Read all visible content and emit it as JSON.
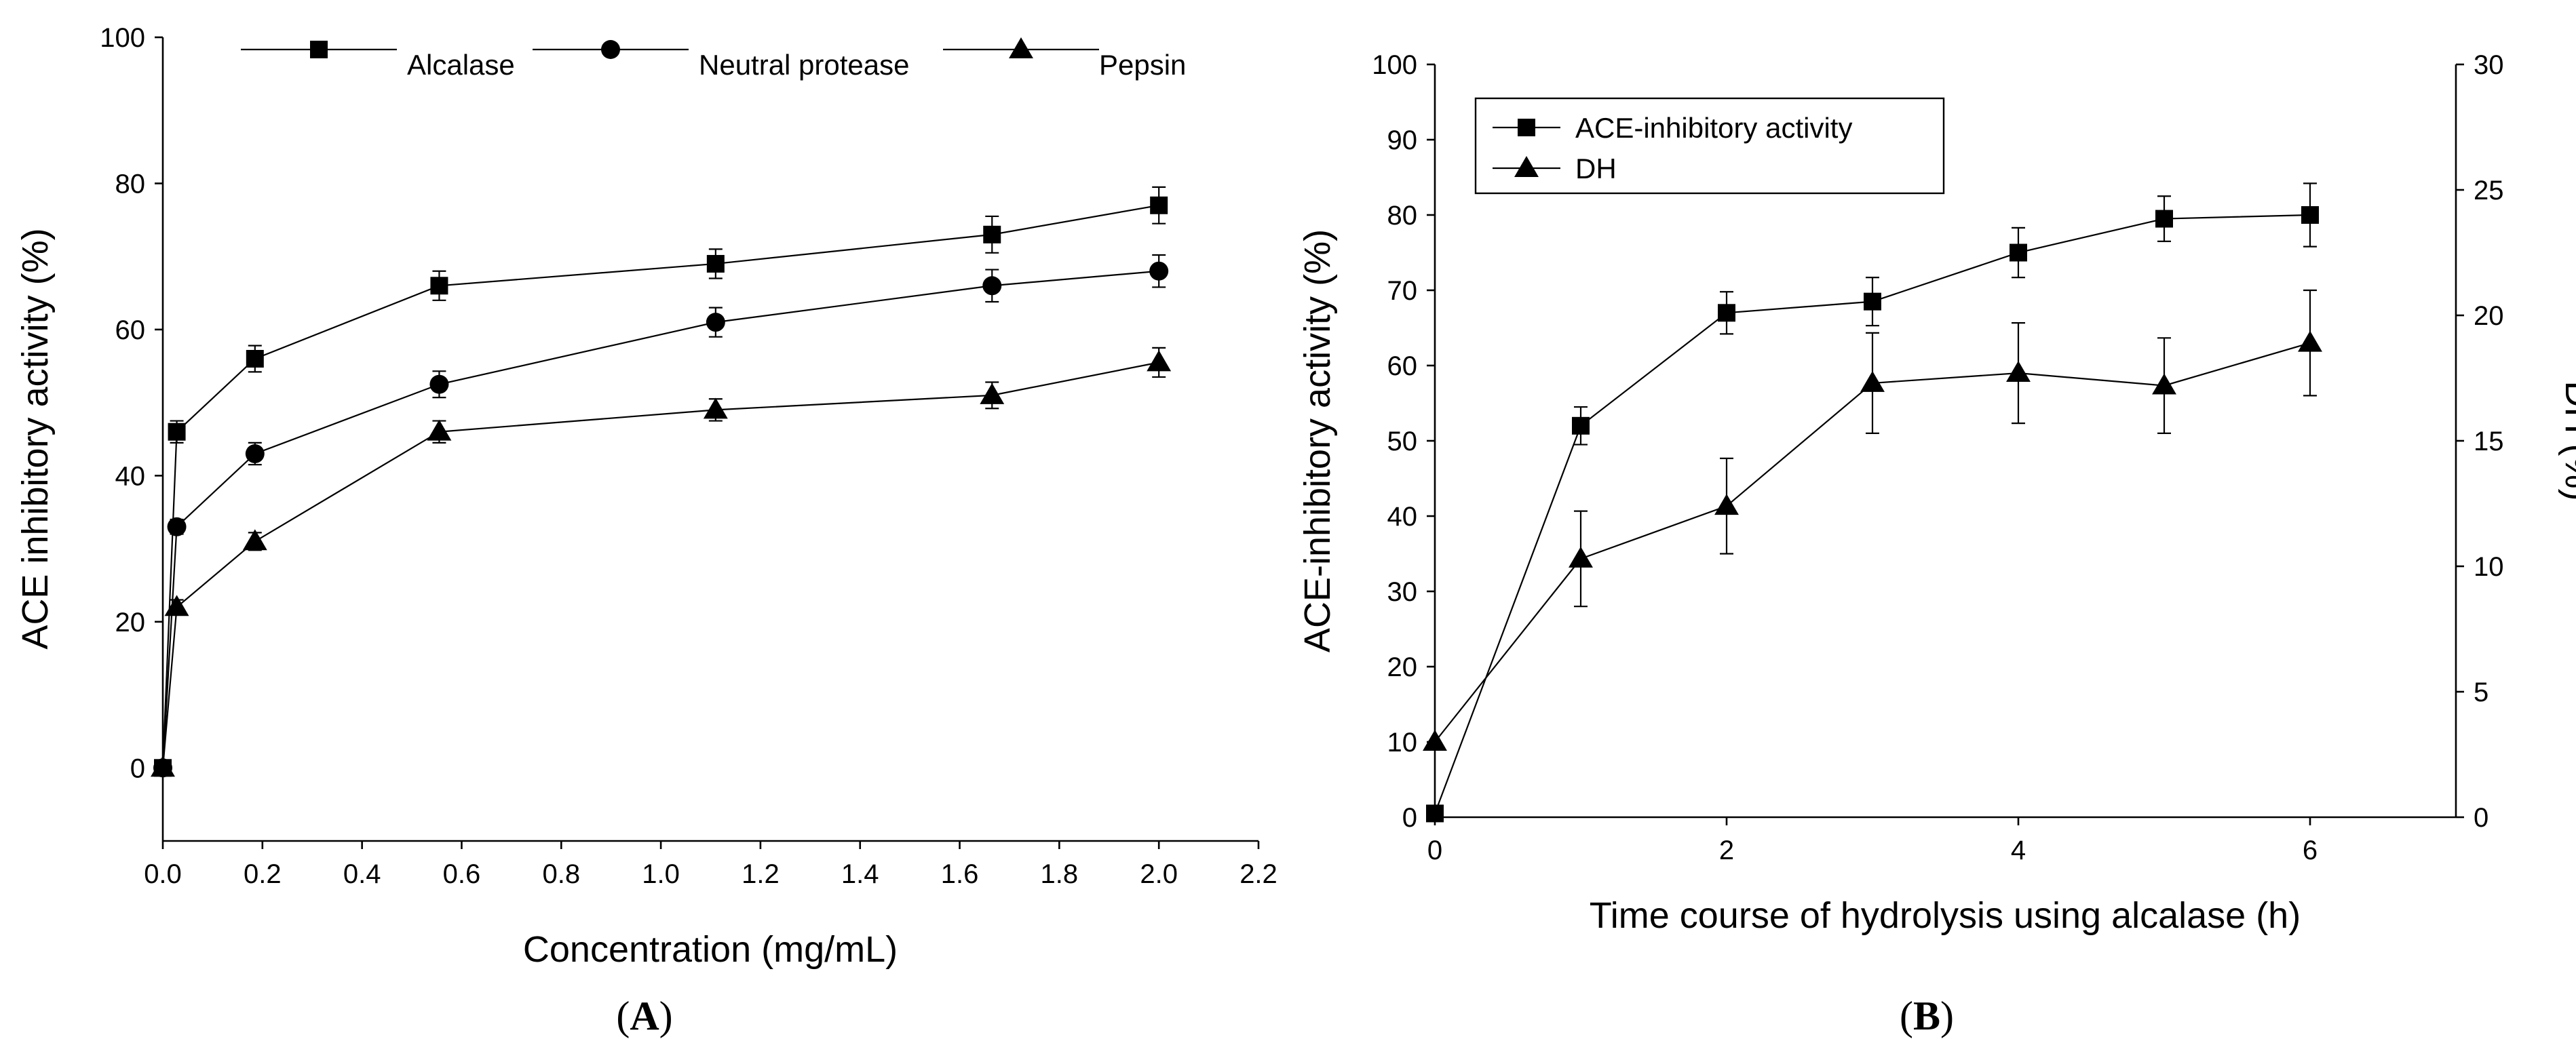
{
  "chart_data": [
    {
      "id": "A",
      "type": "line",
      "panel_label_open": "(",
      "panel_label": "A",
      "panel_label_close": ")",
      "xlabel": "Concentration (mg/mL)",
      "ylabel": "ACE inhibitory activity (%)",
      "xlim": [
        0,
        2.2
      ],
      "ylim": [
        -10,
        100
      ],
      "xticks": [
        "0.0",
        "0.2",
        "0.4",
        "0.6",
        "0.8",
        "1.0",
        "1.2",
        "1.4",
        "1.6",
        "1.8",
        "2.0",
        "2.2"
      ],
      "yticks": [
        "0",
        "20",
        "40",
        "60",
        "80",
        "100"
      ],
      "x": [
        0,
        0.028,
        0.185,
        0.555,
        1.11,
        1.665,
        2.0
      ],
      "legend_position": "top",
      "series": [
        {
          "name": "Alcalase",
          "marker": "square",
          "values": [
            0,
            46,
            56,
            66,
            69,
            73,
            77
          ],
          "errors": [
            0,
            1.5,
            1.8,
            2,
            2,
            2.5,
            2.5
          ]
        },
        {
          "name": "Neutral protease",
          "marker": "circle",
          "values": [
            0,
            33,
            43,
            52.5,
            61,
            66,
            68
          ],
          "errors": [
            0,
            1,
            1.5,
            1.8,
            2,
            2.2,
            2.2
          ]
        },
        {
          "name": "Pepsin",
          "marker": "triangle",
          "values": [
            0,
            22,
            31,
            46,
            49,
            51,
            55.5
          ],
          "errors": [
            0,
            1,
            1.2,
            1.5,
            1.5,
            1.8,
            2
          ]
        }
      ]
    },
    {
      "id": "B",
      "type": "line",
      "panel_label_open": "(",
      "panel_label": "B",
      "panel_label_close": ")",
      "xlabel": "Time course of hydrolysis using alcalase (h)",
      "ylabel": "ACE-inhibitory activity (%)",
      "y2label": "DH (%)",
      "xlim": [
        0,
        7
      ],
      "ylim": [
        0,
        100
      ],
      "y2lim": [
        0,
        30
      ],
      "xticks": [
        "0",
        "2",
        "4",
        "6"
      ],
      "yticks": [
        "0",
        "10",
        "20",
        "30",
        "40",
        "50",
        "60",
        "70",
        "80",
        "90",
        "100"
      ],
      "y2ticks": [
        "0",
        "5",
        "10",
        "15",
        "20",
        "25",
        "30"
      ],
      "x": [
        0,
        1,
        2,
        3,
        4,
        5,
        6
      ],
      "legend_position": "top-left",
      "series": [
        {
          "name": "ACE-inhibitory activity",
          "marker": "square",
          "axis": "left",
          "values": [
            0.5,
            52,
            67,
            68.5,
            75,
            79.5,
            80
          ],
          "errors": [
            0,
            2.5,
            2.8,
            3.2,
            3.3,
            3,
            4.2
          ]
        },
        {
          "name": "DH",
          "marker": "triangle",
          "axis": "right",
          "values": [
            3,
            10.3,
            12.4,
            17.3,
            17.7,
            17.2,
            18.9
          ],
          "errors": [
            0,
            1.9,
            1.9,
            2,
            2,
            1.9,
            2.1
          ]
        }
      ]
    }
  ]
}
